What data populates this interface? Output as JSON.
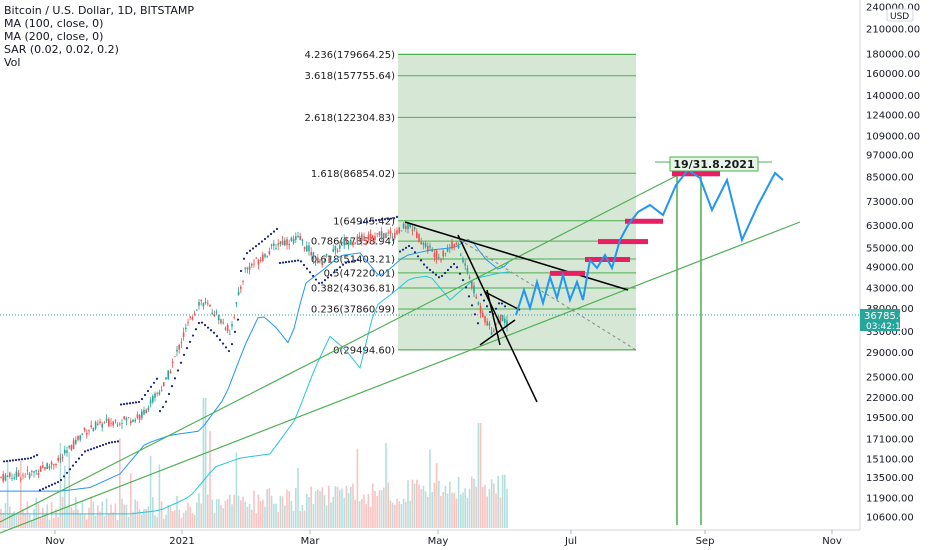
{
  "header": {
    "title": "Bitcoin / U.S. Dollar, 1D, BITSTAMP",
    "indicators": [
      "MA (100, close, 0)",
      "MA (200, close, 0)",
      "SAR (0.02, 0.02, 0.2)",
      "Vol"
    ],
    "currency_badge": "USD"
  },
  "price_badge": {
    "price": "36785.00",
    "countdown": "03:42:19"
  },
  "annotation": "19/31.8.2021",
  "colors": {
    "up": "#26a69a",
    "down": "#ef5350",
    "ma100": "#2196f3",
    "ma200": "#26c6da",
    "sar": "#1a237e",
    "trend": "#4caf50",
    "projection": "#2196f3",
    "fib_fill": "#cfe3cf",
    "fib_line": "#4caf50",
    "target": "#e91e63",
    "price_badge": "#26a69a"
  },
  "chart_data": {
    "type": "candlestick",
    "y_scale": "log",
    "x_ticks": [
      "Nov",
      "2021",
      "Mar",
      "May",
      "Jul",
      "Sep",
      "Nov"
    ],
    "y_ticks": [
      "10600.00",
      "11900.00",
      "13500.00",
      "15100.00",
      "17100.00",
      "19500.00",
      "22000.00",
      "25000.00",
      "29000.00",
      "33000.00",
      "38000.00",
      "43000.00",
      "49000.00",
      "55000.00",
      "63000.00",
      "73000.00",
      "85000.00",
      "97000.00",
      "109000.00",
      "124000.00",
      "140000.00",
      "160000.00",
      "180000.00",
      "210000.00",
      "240000.00"
    ],
    "fib_levels": [
      {
        "label": "0(29494.60)",
        "value": 29494.6
      },
      {
        "label": "0.236(37860.99)",
        "value": 37860.99
      },
      {
        "label": "0.382(43036.81)",
        "value": 43036.81
      },
      {
        "label": "0.5(47220.01)",
        "value": 47220.01
      },
      {
        "label": "0.618(51403.21)",
        "value": 51403.21
      },
      {
        "label": "0.786(57358.94)",
        "value": 57358.94
      },
      {
        "label": "1(64945.42)",
        "value": 64945.42
      },
      {
        "label": "1.618(86854.02)",
        "value": 86854.02
      },
      {
        "label": "2.618(122304.83)",
        "value": 122304.83
      },
      {
        "label": "3.618(157755.64)",
        "value": 157755.64
      },
      {
        "label": "4.236(179664.25)",
        "value": 179664.25
      }
    ],
    "current_price": 36785.0,
    "target_zones": [
      47220,
      51403,
      57359,
      64945,
      86854
    ],
    "projection_path": [
      [
        516,
        315
      ],
      [
        524,
        290
      ],
      [
        530,
        308
      ],
      [
        537,
        282
      ],
      [
        543,
        303
      ],
      [
        550,
        277
      ],
      [
        557,
        298
      ],
      [
        563,
        275
      ],
      [
        570,
        300
      ],
      [
        577,
        282
      ],
      [
        583,
        300
      ],
      [
        590,
        260
      ],
      [
        597,
        268
      ],
      [
        605,
        255
      ],
      [
        612,
        268
      ],
      [
        620,
        240
      ],
      [
        628,
        225
      ],
      [
        638,
        212
      ],
      [
        650,
        205
      ],
      [
        663,
        215
      ],
      [
        676,
        185
      ],
      [
        688,
        170
      ],
      [
        700,
        178
      ],
      [
        712,
        210
      ],
      [
        727,
        180
      ],
      [
        742,
        240
      ],
      [
        758,
        205
      ],
      [
        775,
        173
      ],
      [
        783,
        180
      ]
    ]
  }
}
